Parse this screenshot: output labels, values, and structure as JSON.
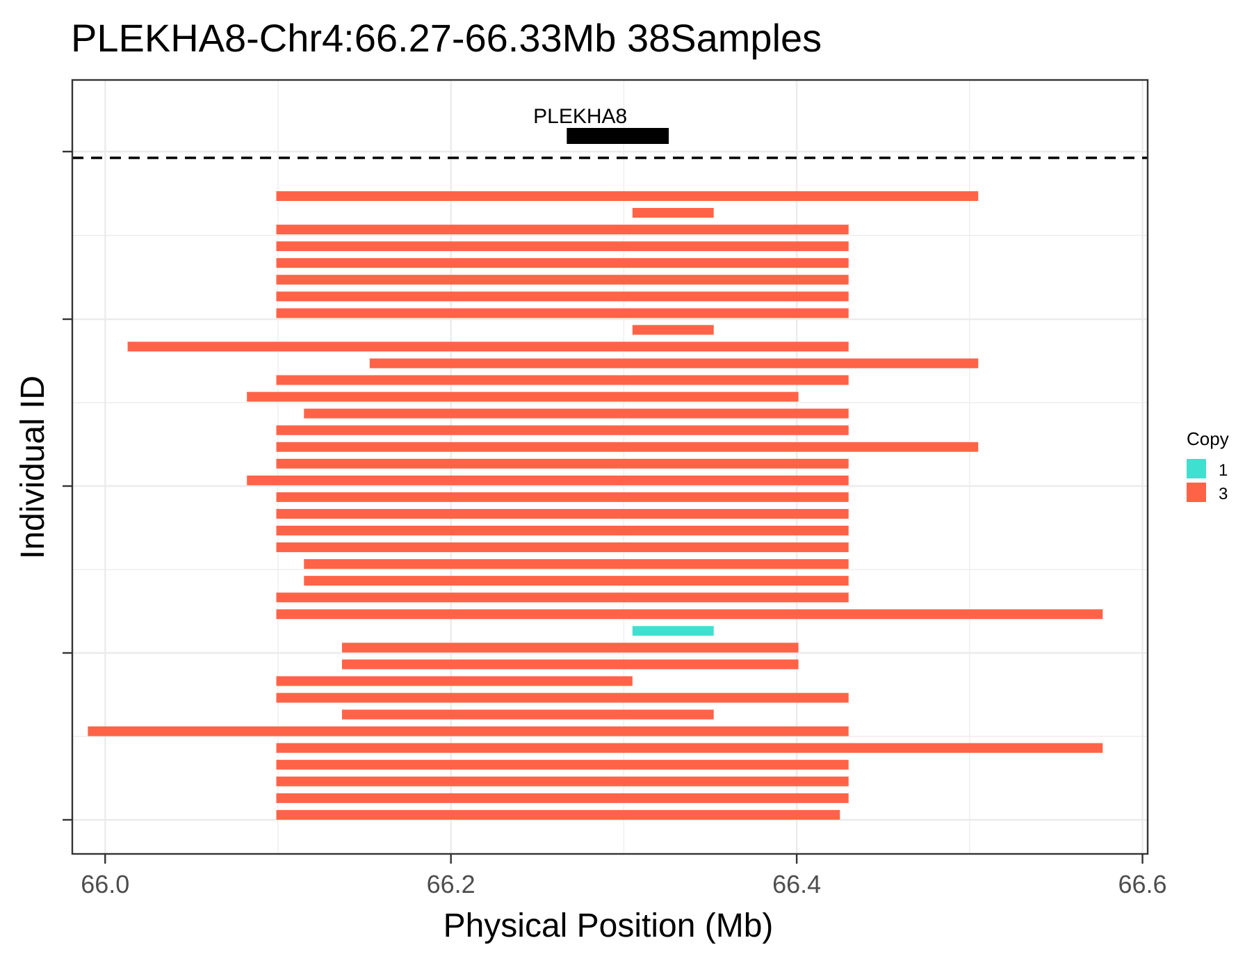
{
  "chart_data": {
    "type": "bar",
    "orientation": "horizontal-segments",
    "title": "PLEKHA8-Chr4:66.27-66.33Mb 38Samples",
    "xlabel": "Physical Position (Mb)",
    "ylabel": "Individual ID",
    "xlim": [
      65.981,
      66.603
    ],
    "x_ticks": [
      "66.0",
      "66.2",
      "66.4",
      "66.6"
    ],
    "x_tick_values": [
      66.0,
      66.2,
      66.4,
      66.6
    ],
    "grid": true,
    "dashed_separator": true,
    "gene": {
      "name": "PLEKHA8",
      "start": 66.267,
      "end": 66.326
    },
    "legend": {
      "title": "Copy",
      "position": "right",
      "entries": [
        {
          "label": "1",
          "color": "#40E0D0"
        },
        {
          "label": "3",
          "color": "#FF6347"
        }
      ]
    },
    "segments": [
      {
        "start": 66.099,
        "end": 66.505,
        "copy": 3
      },
      {
        "start": 66.305,
        "end": 66.352,
        "copy": 3
      },
      {
        "start": 66.099,
        "end": 66.43,
        "copy": 3
      },
      {
        "start": 66.099,
        "end": 66.43,
        "copy": 3
      },
      {
        "start": 66.099,
        "end": 66.43,
        "copy": 3
      },
      {
        "start": 66.099,
        "end": 66.43,
        "copy": 3
      },
      {
        "start": 66.099,
        "end": 66.43,
        "copy": 3
      },
      {
        "start": 66.099,
        "end": 66.43,
        "copy": 3
      },
      {
        "start": 66.305,
        "end": 66.352,
        "copy": 3
      },
      {
        "start": 66.013,
        "end": 66.43,
        "copy": 3
      },
      {
        "start": 66.153,
        "end": 66.505,
        "copy": 3
      },
      {
        "start": 66.099,
        "end": 66.43,
        "copy": 3
      },
      {
        "start": 66.082,
        "end": 66.401,
        "copy": 3
      },
      {
        "start": 66.115,
        "end": 66.43,
        "copy": 3
      },
      {
        "start": 66.099,
        "end": 66.43,
        "copy": 3
      },
      {
        "start": 66.099,
        "end": 66.505,
        "copy": 3
      },
      {
        "start": 66.099,
        "end": 66.43,
        "copy": 3
      },
      {
        "start": 66.082,
        "end": 66.43,
        "copy": 3
      },
      {
        "start": 66.099,
        "end": 66.43,
        "copy": 3
      },
      {
        "start": 66.099,
        "end": 66.43,
        "copy": 3
      },
      {
        "start": 66.099,
        "end": 66.43,
        "copy": 3
      },
      {
        "start": 66.099,
        "end": 66.43,
        "copy": 3
      },
      {
        "start": 66.115,
        "end": 66.43,
        "copy": 3
      },
      {
        "start": 66.115,
        "end": 66.43,
        "copy": 3
      },
      {
        "start": 66.099,
        "end": 66.43,
        "copy": 3
      },
      {
        "start": 66.099,
        "end": 66.577,
        "copy": 3
      },
      {
        "start": 66.305,
        "end": 66.352,
        "copy": 1
      },
      {
        "start": 66.137,
        "end": 66.401,
        "copy": 3
      },
      {
        "start": 66.137,
        "end": 66.401,
        "copy": 3
      },
      {
        "start": 66.099,
        "end": 66.305,
        "copy": 3
      },
      {
        "start": 66.099,
        "end": 66.43,
        "copy": 3
      },
      {
        "start": 66.137,
        "end": 66.352,
        "copy": 3
      },
      {
        "start": 65.99,
        "end": 66.43,
        "copy": 3
      },
      {
        "start": 66.099,
        "end": 66.577,
        "copy": 3
      },
      {
        "start": 66.099,
        "end": 66.43,
        "copy": 3
      },
      {
        "start": 66.099,
        "end": 66.43,
        "copy": 3
      },
      {
        "start": 66.099,
        "end": 66.43,
        "copy": 3
      },
      {
        "start": 66.099,
        "end": 66.425,
        "copy": 3
      }
    ]
  }
}
